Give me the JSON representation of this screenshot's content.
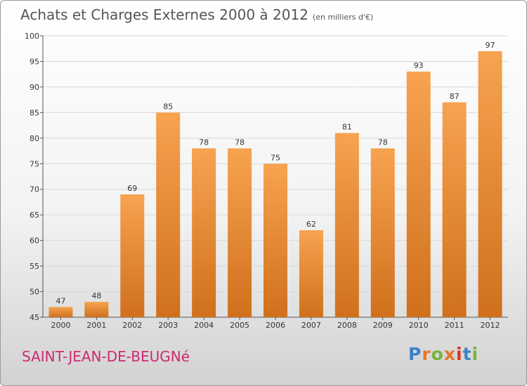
{
  "header": {
    "title": "Achats et Charges Externes 2000 à 2012",
    "unit": "(en milliers d'€)"
  },
  "footer": {
    "location": "SAINT-JEAN-DE-BEUGNé",
    "logo": [
      "P",
      "r",
      "o",
      "x",
      "i",
      "t",
      "i"
    ]
  },
  "colors": {
    "bar_light": "#f7a350",
    "bar_dark": "#d0701c",
    "grid": "#d8d8d8"
  },
  "chart_data": {
    "type": "bar",
    "title": "Achats et Charges Externes 2000 à 2012",
    "subtitle": "(en milliers d'€)",
    "xlabel": "",
    "ylabel": "",
    "categories": [
      "2000",
      "2001",
      "2002",
      "2003",
      "2004",
      "2005",
      "2006",
      "2007",
      "2008",
      "2009",
      "2010",
      "2011",
      "2012"
    ],
    "values": [
      47,
      48,
      69,
      85,
      78,
      78,
      75,
      62,
      81,
      78,
      93,
      87,
      97
    ],
    "ylim": [
      45,
      100
    ],
    "yticks": [
      45,
      50,
      55,
      60,
      65,
      70,
      75,
      80,
      85,
      90,
      95,
      100
    ],
    "grid": true
  }
}
